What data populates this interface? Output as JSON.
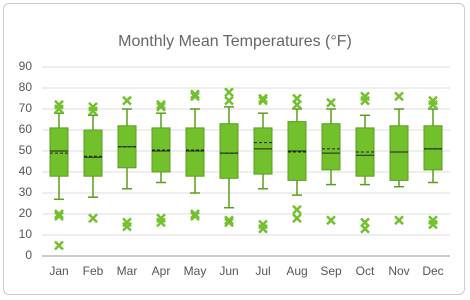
{
  "chart_data": {
    "type": "box",
    "title": "Monthly Mean Temperatures (°F)",
    "categories": [
      "Jan",
      "Feb",
      "Mar",
      "Apr",
      "May",
      "Jun",
      "Jul",
      "Aug",
      "Sep",
      "Oct",
      "Nov",
      "Dec"
    ],
    "boxes": [
      {
        "min": 27,
        "q1": 38,
        "median": 50,
        "mean": 49,
        "q3": 61,
        "max": 68,
        "outliers": [
          72,
          70,
          20,
          19,
          5
        ]
      },
      {
        "min": 28,
        "q1": 38,
        "median": 47,
        "mean": 47.5,
        "q3": 60,
        "max": 67,
        "outliers": [
          71,
          69,
          18
        ]
      },
      {
        "min": 32,
        "q1": 42,
        "median": 52,
        "mean": 52,
        "q3": 62,
        "max": 70,
        "outliers": [
          74,
          16,
          14
        ]
      },
      {
        "min": 35,
        "q1": 40,
        "median": 50,
        "mean": 50.5,
        "q3": 61,
        "max": 68,
        "outliers": [
          72,
          71,
          18,
          16
        ]
      },
      {
        "min": 30,
        "q1": 38,
        "median": 50,
        "mean": 50.5,
        "q3": 61,
        "max": 70,
        "outliers": [
          77,
          76,
          20,
          19
        ]
      },
      {
        "min": 23,
        "q1": 37,
        "median": 49,
        "mean": 49,
        "q3": 63,
        "max": 71,
        "outliers": [
          78,
          74,
          17,
          16
        ]
      },
      {
        "min": 32,
        "q1": 39,
        "median": 51,
        "mean": 54,
        "q3": 61,
        "max": 68,
        "outliers": [
          75,
          74,
          15,
          13
        ]
      },
      {
        "min": 29,
        "q1": 36,
        "median": 50,
        "mean": 49.5,
        "q3": 64,
        "max": 70,
        "outliers": [
          75,
          72,
          22,
          18
        ]
      },
      {
        "min": 34,
        "q1": 41,
        "median": 49,
        "mean": 51,
        "q3": 63,
        "max": 70,
        "outliers": [
          73,
          17
        ]
      },
      {
        "min": 34,
        "q1": 38,
        "median": 48,
        "mean": 49.5,
        "q3": 61,
        "max": 67,
        "outliers": [
          76,
          74,
          16,
          13
        ]
      },
      {
        "min": 33,
        "q1": 36,
        "median": 49.5,
        "mean": 49.5,
        "q3": 62,
        "max": 70,
        "outliers": [
          76,
          17
        ]
      },
      {
        "min": 35,
        "q1": 41,
        "median": 51,
        "mean": 51,
        "q3": 62,
        "max": 70,
        "outliers": [
          74,
          72,
          17,
          15
        ]
      }
    ],
    "color": "#72c02c",
    "ylim": [
      0,
      90
    ],
    "yticks": [
      0,
      10,
      20,
      30,
      40,
      50,
      60,
      70,
      80,
      90
    ],
    "grid": true
  }
}
